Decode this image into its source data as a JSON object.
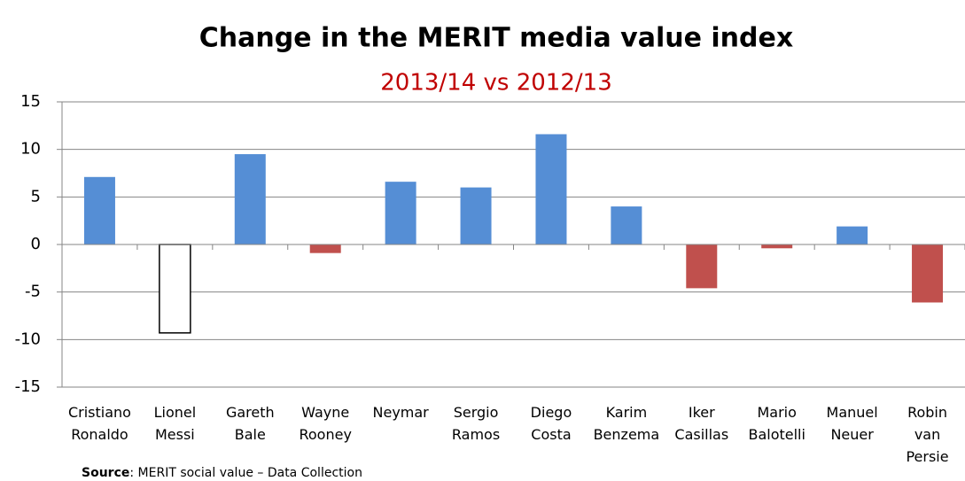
{
  "chart_data": {
    "type": "bar",
    "title": "Change in the MERIT media value index",
    "subtitle": "2013/14 vs 2012/13",
    "categories": [
      "Cristiano Ronaldo",
      "Lionel Messi",
      "Gareth Bale",
      "Wayne Rooney",
      "Neymar",
      "Sergio Ramos",
      "Diego Costa",
      "Karim Benzema",
      "Iker Casillas",
      "Mario Balotelli",
      "Manuel Neuer",
      "Robin van Persie"
    ],
    "values": [
      7.1,
      -9.3,
      9.5,
      -0.9,
      6.6,
      6.0,
      11.6,
      4.0,
      -4.6,
      -0.4,
      1.9,
      -6.1
    ],
    "colors": [
      "#558ed5",
      "#ffffff",
      "#558ed5",
      "#c0504d",
      "#558ed5",
      "#558ed5",
      "#558ed5",
      "#558ed5",
      "#c0504d",
      "#c0504d",
      "#558ed5",
      "#c0504d"
    ],
    "ylim": [
      -15,
      15
    ],
    "yticks": [
      -15,
      -10,
      -5,
      0,
      5,
      10,
      15
    ],
    "grid": true,
    "source_label": "Source",
    "source_text": ": MERIT social value – Data Collection"
  }
}
